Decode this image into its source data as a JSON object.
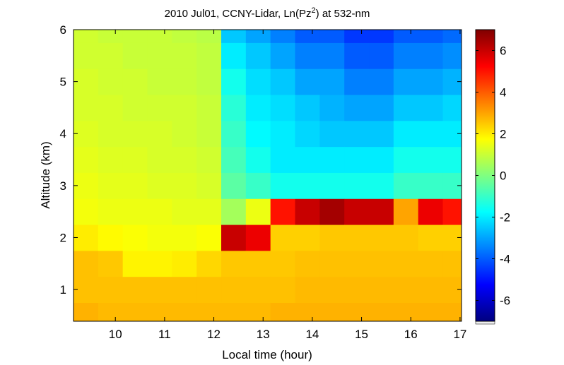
{
  "chart_data": {
    "type": "heatmap",
    "title": [
      "2010 Jul01, CCNY-Lidar, Ln(Pz",
      "2",
      ") at 532-nm"
    ],
    "xlabel": "Local time (hour)",
    "ylabel": "Altitude (km)",
    "x": [
      9.4,
      9.9,
      10.4,
      10.9,
      11.4,
      11.9,
      12.4,
      12.9,
      13.4,
      13.9,
      14.4,
      14.9,
      15.4,
      15.9,
      16.4,
      16.9
    ],
    "y": [
      0.5,
      1.0,
      1.5,
      2.0,
      2.5,
      3.0,
      3.5,
      4.0,
      4.5,
      5.0,
      5.5,
      6.0
    ],
    "values": [
      [
        2.8,
        2.6,
        2.6,
        2.0,
        1.6,
        1.5,
        1.4,
        1.3,
        1.2,
        1.2,
        1.1,
        1.1
      ],
      [
        2.7,
        2.6,
        2.5,
        1.8,
        1.5,
        1.4,
        1.3,
        1.2,
        1.2,
        1.1,
        1.1,
        1.0
      ],
      [
        2.7,
        2.6,
        1.9,
        1.7,
        1.5,
        1.4,
        1.3,
        1.2,
        1.1,
        1.1,
        1.0,
        1.0
      ],
      [
        2.7,
        2.6,
        1.9,
        1.6,
        1.5,
        1.3,
        1.2,
        1.2,
        1.1,
        1.0,
        1.0,
        1.0
      ],
      [
        2.7,
        2.6,
        2.0,
        1.6,
        1.4,
        1.3,
        1.2,
        1.1,
        1.1,
        1.0,
        1.0,
        0.9
      ],
      [
        2.7,
        2.6,
        2.3,
        1.7,
        1.4,
        1.2,
        1.1,
        1.0,
        1.0,
        0.9,
        0.9,
        0.8
      ],
      [
        2.7,
        2.6,
        2.5,
        6.0,
        0.5,
        -0.5,
        -0.8,
        -1,
        -1.2,
        -1.5,
        -2,
        -2.5
      ],
      [
        2.7,
        2.6,
        2.5,
        5.5,
        1.5,
        -1,
        -1.5,
        -1.8,
        -2,
        -2.2,
        -2.5,
        -3
      ],
      [
        2.8,
        2.6,
        2.5,
        2.4,
        5,
        -1.5,
        -2,
        -2,
        -2.2,
        -2.5,
        -3,
        -3.5
      ],
      [
        2.8,
        2.7,
        2.6,
        2.4,
        6,
        -1.5,
        -2,
        -2.3,
        -2.5,
        -3,
        -3.5,
        -4
      ],
      [
        2.8,
        2.7,
        2.6,
        2.5,
        6.5,
        -1.5,
        -2,
        -2.5,
        -2.8,
        -3,
        -3.5,
        -4
      ],
      [
        2.8,
        2.7,
        2.6,
        2.5,
        6,
        -1.5,
        -2,
        -2.5,
        -3,
        -3.5,
        -4,
        -4.5
      ],
      [
        2.8,
        2.7,
        2.6,
        2.5,
        6,
        -1.5,
        -2,
        -2.5,
        -3,
        -3.5,
        -4,
        -4.5
      ],
      [
        2.8,
        2.7,
        2.6,
        2.5,
        3,
        -1,
        -1.5,
        -2,
        -2.5,
        -3,
        -3.5,
        -4
      ],
      [
        2.8,
        2.7,
        2.6,
        2.4,
        5.5,
        -1,
        -1.5,
        -2,
        -2.5,
        -3,
        -3.5,
        -4
      ],
      [
        2.8,
        2.7,
        2.6,
        2.4,
        5,
        -1,
        -1.5,
        -2,
        -2.3,
        -2.8,
        -3.3,
        -3.8
      ]
    ],
    "xlim": [
      9.15,
      17.03
    ],
    "xticks": [
      10,
      11,
      12,
      13,
      14,
      15,
      16,
      17
    ],
    "ylim": [
      0.39,
      6
    ],
    "yticks": [
      1,
      2,
      3,
      4,
      5,
      6
    ],
    "clim": [
      -7,
      7
    ],
    "cticks": [
      -6,
      -4,
      -2,
      0,
      2,
      4,
      6
    ],
    "colormap": "jet"
  }
}
